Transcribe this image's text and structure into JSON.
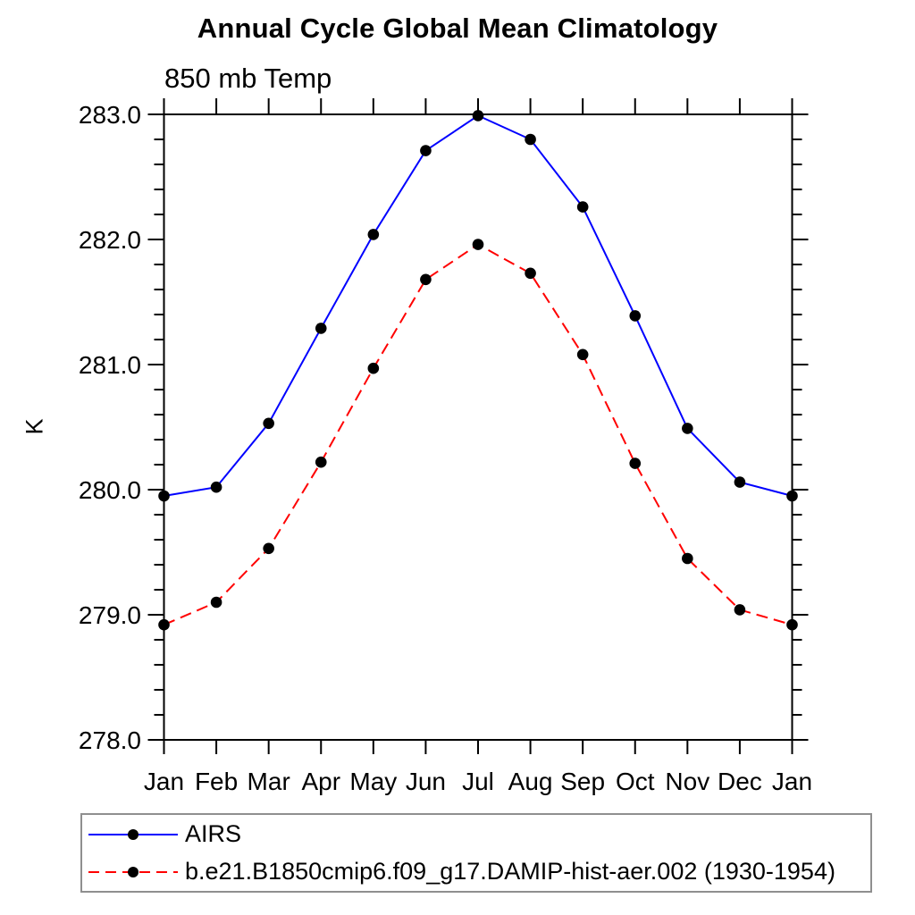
{
  "chart": {
    "title": "Annual Cycle Global Mean Climatology",
    "subtitle": "850 mb Temp",
    "ylabel": "K"
  },
  "chart_data": {
    "type": "line",
    "title": "Annual Cycle Global Mean Climatology",
    "subtitle": "850 mb Temp",
    "xlabel": "",
    "ylabel": "K",
    "x_categories": [
      "Jan",
      "Feb",
      "Mar",
      "Apr",
      "May",
      "Jun",
      "Jul",
      "Aug",
      "Sep",
      "Oct",
      "Nov",
      "Dec",
      "Jan"
    ],
    "ylim": [
      278.0,
      283.0
    ],
    "yticks": [
      278.0,
      279.0,
      280.0,
      281.0,
      282.0,
      283.0
    ],
    "ytick_labels": [
      "278.0",
      "279.0",
      "280.0",
      "281.0",
      "282.0",
      "283.0"
    ],
    "y_minor_step": 0.2,
    "grid": false,
    "legend_position": "bottom-left",
    "axis_color": "#000000",
    "marker": "filled-circle",
    "marker_color": "#000000",
    "series": [
      {
        "name": "AIRS",
        "color": "#0000ff",
        "style": "solid",
        "values": [
          279.95,
          280.02,
          280.53,
          281.29,
          282.04,
          282.71,
          282.99,
          282.8,
          282.26,
          281.39,
          280.49,
          280.06,
          279.95
        ]
      },
      {
        "name": "b.e21.B1850cmip6.f09_g17.DAMIP-hist-aer.002 (1930-1954)",
        "color": "#ff0000",
        "style": "dashed",
        "values": [
          278.92,
          279.1,
          279.53,
          280.22,
          280.97,
          281.68,
          281.96,
          281.73,
          281.08,
          280.21,
          279.45,
          279.04,
          278.92
        ]
      }
    ]
  }
}
